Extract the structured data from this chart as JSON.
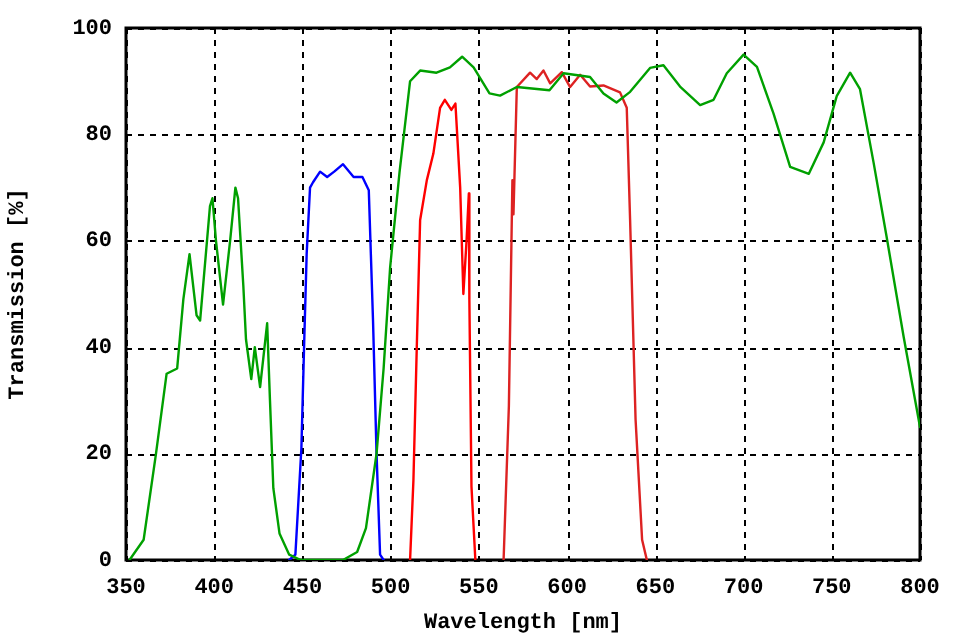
{
  "chart_data": {
    "type": "line",
    "xlabel": "Wavelength [nm]",
    "ylabel": "Transmission [%]",
    "xlim": [
      350,
      800
    ],
    "xticks": [
      350,
      400,
      450,
      500,
      550,
      600,
      650,
      700,
      750,
      800
    ],
    "ylim": [
      0,
      100
    ],
    "yticks": [
      0,
      20,
      40,
      60,
      80,
      100
    ],
    "grid": true,
    "legend": false,
    "marker": "none",
    "line_style": "solid",
    "series": [
      {
        "color": "#00a000",
        "x": [
          352,
          360,
          367,
          373,
          379,
          382.5,
          386,
          390,
          392,
          397.6,
          399,
          401,
          405,
          409,
          412,
          413.5,
          416.5,
          418,
          421,
          423,
          426,
          430,
          431.6,
          433.5,
          437,
          442.5,
          449,
          473,
          481,
          486,
          492,
          496,
          499.7,
          505,
          511,
          516.7,
          526,
          533.6,
          540.5,
          547,
          556,
          562,
          571.5,
          590,
          598,
          613,
          620.6,
          628,
          635.7,
          647,
          654.6,
          664,
          675.4,
          683,
          690.5,
          700,
          707.6,
          717,
          726.4,
          737,
          745.4,
          752.8,
          760.4,
          766,
          773.7,
          781,
          790.7,
          800
        ],
        "values": [
          0,
          3.8,
          20,
          35,
          36,
          49,
          57.5,
          46,
          45,
          66.5,
          68,
          60,
          48,
          60,
          70,
          68,
          51.5,
          41.5,
          34,
          40,
          32.5,
          44.5,
          30,
          13.5,
          5,
          1,
          0,
          0,
          1.5,
          6,
          20,
          36,
          55,
          72.8,
          90,
          92,
          91.6,
          92.6,
          94.6,
          92.6,
          87.7,
          87.3,
          88.9,
          88.3,
          91.5,
          90.8,
          87.7,
          86,
          88,
          92.5,
          93,
          89,
          85.5,
          86.5,
          91.5,
          95,
          92.7,
          83.9,
          73.9,
          72.6,
          78.5,
          87.2,
          91.6,
          88.5,
          74.7,
          60.9,
          42,
          25
        ]
      },
      {
        "color": "#0000ff",
        "x": [
          442.5,
          446,
          449.4,
          451,
          452.4,
          454.3,
          456,
          460,
          464,
          468,
          473,
          479,
          484,
          487.6,
          490,
          492,
          494,
          496
        ],
        "values": [
          0,
          1,
          21,
          41,
          57.6,
          70,
          71,
          73,
          72,
          73,
          74.4,
          72,
          72,
          69.5,
          45,
          20,
          1,
          0
        ]
      },
      {
        "color": "#ff0000",
        "x": [
          511,
          512.9,
          514.8,
          516.7,
          520.5,
          524.2,
          528,
          530.7,
          534.4,
          536.7,
          539.4,
          541.2,
          543,
          544.3,
          544.6,
          545.8,
          548
        ],
        "values": [
          0,
          15,
          40,
          63.9,
          71.4,
          76.4,
          85,
          86.5,
          84.6,
          85.8,
          70,
          50,
          60,
          68.9,
          49,
          13.8,
          0
        ]
      },
      {
        "color": "#dd2222",
        "x": [
          564,
          567,
          569,
          569.6,
          571.5,
          579,
          582.8,
          586.6,
          590.4,
          597,
          601.7,
          607.4,
          613,
          620.6,
          630,
          633.8,
          635.7,
          638.8,
          642.5,
          645.2
        ],
        "values": [
          0,
          29,
          71.4,
          65,
          88.9,
          91.6,
          90.4,
          92,
          89.6,
          91.7,
          88.9,
          91.2,
          89,
          89.2,
          87.9,
          85,
          63.9,
          26.4,
          3.8,
          0
        ]
      }
    ]
  }
}
